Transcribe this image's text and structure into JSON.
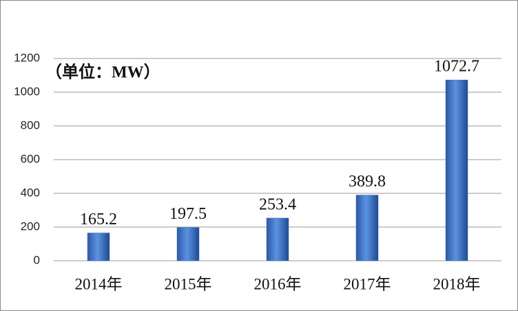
{
  "chart_data": {
    "type": "bar",
    "annotation": "（单位：MW）",
    "categories": [
      "2014年",
      "2015年",
      "2016年",
      "2017年",
      "2018年"
    ],
    "values": [
      165.2,
      197.5,
      253.4,
      389.8,
      1072.7
    ],
    "color": "#3a6fc4",
    "ylim": [
      0,
      1200
    ],
    "yticks": [
      0,
      200,
      400,
      600,
      800,
      1000,
      1200
    ],
    "grid": true
  }
}
